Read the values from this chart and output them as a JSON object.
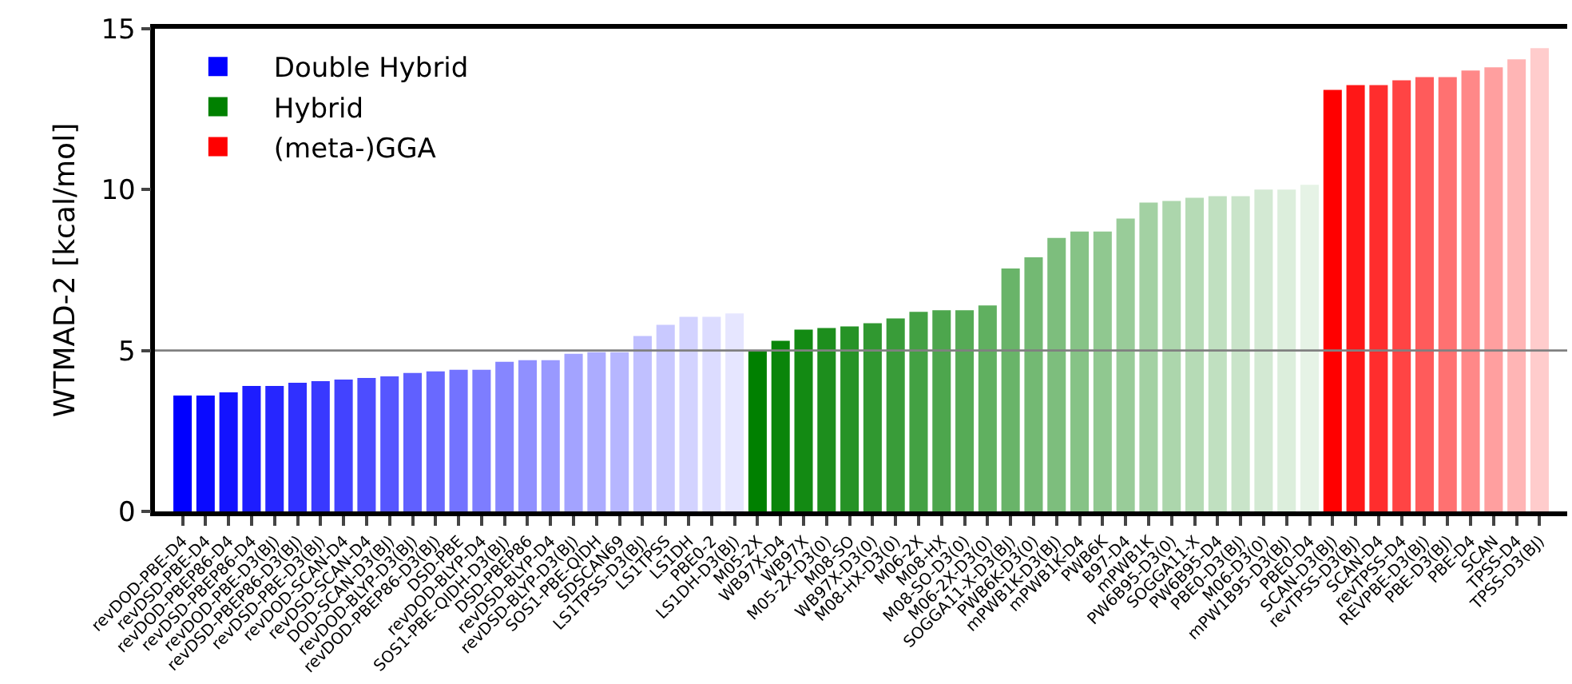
{
  "chart_data": {
    "type": "bar",
    "ylabel": "WTMAD-2 [kcal/mol]",
    "categories": [
      "revDOD-PBE-D4",
      "revDSD-PBE-D4",
      "revDOD-PBEP86-D4",
      "revDSD-PBEP86-D4",
      "revDOD-PBE-D3(BJ)",
      "revDSD-PBEP86-D3(BJ)",
      "revDSD-PBE-D3(BJ)",
      "revDOD-SCAN-D4",
      "revDSD-SCAN-D4",
      "DOD-SCAN-D3(BJ)",
      "revDOD-BLYP-D3(BJ)",
      "revDOD-PBEP86-D3(BJ)",
      "DSD-PBE",
      "revDOD-BLYP-D4",
      "SOS1-PBE-QIDH-D3(BJ)",
      "DSD-PBEP86",
      "revDSD-BLYP-D4",
      "revDSD-BLYP-D3(BJ)",
      "SOS1-PBE-QIDH",
      "SDSCAN69",
      "LS1TPSS-D3(BJ)",
      "LS1TPSS",
      "LS1DH",
      "PBE0-2",
      "LS1DH-D3(BJ)",
      "M05-2X",
      "WB97X-D4",
      "WB97X",
      "M05-2X-D3(0)",
      "M08-SO",
      "WB97X-D3(0)",
      "M08-HX-D3(0)",
      "M06-2X",
      "M08-HX",
      "M08-SO-D3(0)",
      "M06-2X-D3(0)",
      "SOGGA11-X-D3(BJ)",
      "PWB6K-D3(0)",
      "mPWB1K-D3(BJ)",
      "mPWB1K-D4",
      "PWB6K",
      "B97-D4",
      "mPWB1K",
      "PW6B95-D3(0)",
      "SOGGA11-X",
      "PW6B95-D4",
      "PBE0-D3(BJ)",
      "M06-D3(0)",
      "mPW1B95-D3(BJ)",
      "PBE0-D4",
      "SCAN-D3(BJ)",
      "revTPSS-D3(BJ)",
      "SCAN-D4",
      "revTPSS-D4",
      "REVPBE-D3(BJ)",
      "PBE-D3(BJ)",
      "PBE-D4",
      "SCAN",
      "TPSS-D4",
      "TPSS-D3(BJ)"
    ],
    "series": [
      {
        "name": "Double Hybrid",
        "color": "#0000ff",
        "values": [
          3.6,
          3.6,
          3.7,
          3.9,
          3.9,
          4.0,
          4.05,
          4.1,
          4.15,
          4.2,
          4.3,
          4.35,
          4.4,
          4.4,
          4.65,
          4.7,
          4.7,
          4.9,
          4.95,
          4.95,
          5.45,
          5.8,
          6.05,
          6.05,
          6.15,
          null,
          null,
          null,
          null,
          null,
          null,
          null,
          null,
          null,
          null,
          null,
          null,
          null,
          null,
          null,
          null,
          null,
          null,
          null,
          null,
          null,
          null,
          null,
          null,
          null,
          null,
          null,
          null,
          null,
          null,
          null,
          null,
          null,
          null,
          null
        ],
        "colors": [
          "#0000ff",
          "#0a0aff",
          "#1313ff",
          "#1d1dff",
          "#2626ff",
          "#3030ff",
          "#3939ff",
          "#4343ff",
          "#4d4dff",
          "#5656ff",
          "#6060ff",
          "#6969ff",
          "#7373ff",
          "#7d7dff",
          "#8686ff",
          "#9090ff",
          "#9999ff",
          "#a3a3ff",
          "#acacff",
          "#b6b6ff",
          "#c0c0ff",
          "#c9c9ff",
          "#d3d3ff",
          "#dcdcff",
          "#e6e6ff",
          null,
          null,
          null,
          null,
          null,
          null,
          null,
          null,
          null,
          null,
          null,
          null,
          null,
          null,
          null,
          null,
          null,
          null,
          null,
          null,
          null,
          null,
          null,
          null,
          null,
          null,
          null,
          null,
          null,
          null,
          null,
          null,
          null,
          null,
          null
        ]
      },
      {
        "name": "Hybrid",
        "color": "#008000",
        "values": [
          null,
          null,
          null,
          null,
          null,
          null,
          null,
          null,
          null,
          null,
          null,
          null,
          null,
          null,
          null,
          null,
          null,
          null,
          null,
          null,
          null,
          null,
          null,
          null,
          null,
          5.0,
          5.3,
          5.65,
          5.7,
          5.75,
          5.85,
          6.0,
          6.2,
          6.25,
          6.25,
          6.4,
          7.55,
          7.9,
          8.5,
          8.7,
          8.7,
          9.1,
          9.6,
          9.65,
          9.75,
          9.8,
          9.8,
          10.0,
          10.0,
          10.15,
          null,
          null,
          null,
          null,
          null,
          null,
          null,
          null,
          null,
          null
        ],
        "colors": [
          null,
          null,
          null,
          null,
          null,
          null,
          null,
          null,
          null,
          null,
          null,
          null,
          null,
          null,
          null,
          null,
          null,
          null,
          null,
          null,
          null,
          null,
          null,
          null,
          null,
          "#008000",
          "#0a850a",
          "#138a13",
          "#1d8e1d",
          "#269326",
          "#309830",
          "#399c39",
          "#43a143",
          "#4da64d",
          "#56ab56",
          "#60b060",
          "#69b469",
          "#73b973",
          "#7dbe7d",
          "#86c386",
          "#90c890",
          "#99cc99",
          "#a3d1a3",
          "#acd6ac",
          "#b6dbb6",
          "#c0e0c0",
          "#c9e4c9",
          "#d3e9d3",
          "#dceedc",
          "#e6f3e6",
          null,
          null,
          null,
          null,
          null,
          null,
          null,
          null,
          null,
          null
        ]
      },
      {
        "name": "(meta-)GGA",
        "color": "#ff0000",
        "values": [
          null,
          null,
          null,
          null,
          null,
          null,
          null,
          null,
          null,
          null,
          null,
          null,
          null,
          null,
          null,
          null,
          null,
          null,
          null,
          null,
          null,
          null,
          null,
          null,
          null,
          null,
          null,
          null,
          null,
          null,
          null,
          null,
          null,
          null,
          null,
          null,
          null,
          null,
          null,
          null,
          null,
          null,
          null,
          null,
          null,
          null,
          null,
          null,
          null,
          null,
          13.1,
          13.25,
          13.25,
          13.4,
          13.5,
          13.5,
          13.7,
          13.8,
          14.05,
          14.4
        ],
        "colors": [
          null,
          null,
          null,
          null,
          null,
          null,
          null,
          null,
          null,
          null,
          null,
          null,
          null,
          null,
          null,
          null,
          null,
          null,
          null,
          null,
          null,
          null,
          null,
          null,
          null,
          null,
          null,
          null,
          null,
          null,
          null,
          null,
          null,
          null,
          null,
          null,
          null,
          null,
          null,
          null,
          null,
          null,
          null,
          null,
          null,
          null,
          null,
          null,
          null,
          null,
          "#ff0000",
          "#ff1717",
          "#ff2d2d",
          "#ff4444",
          "#ff5b5b",
          "#ff7171",
          "#ff8888",
          "#ff9f9f",
          "#ffb5b5",
          "#ffcccc"
        ]
      }
    ],
    "ylim": [
      0,
      15
    ],
    "yticks": [
      0,
      5,
      10,
      15
    ],
    "grid": false,
    "legend": "top left",
    "ref_lines": [
      {
        "axis": "y",
        "value": 5,
        "color": "#808080"
      }
    ]
  }
}
